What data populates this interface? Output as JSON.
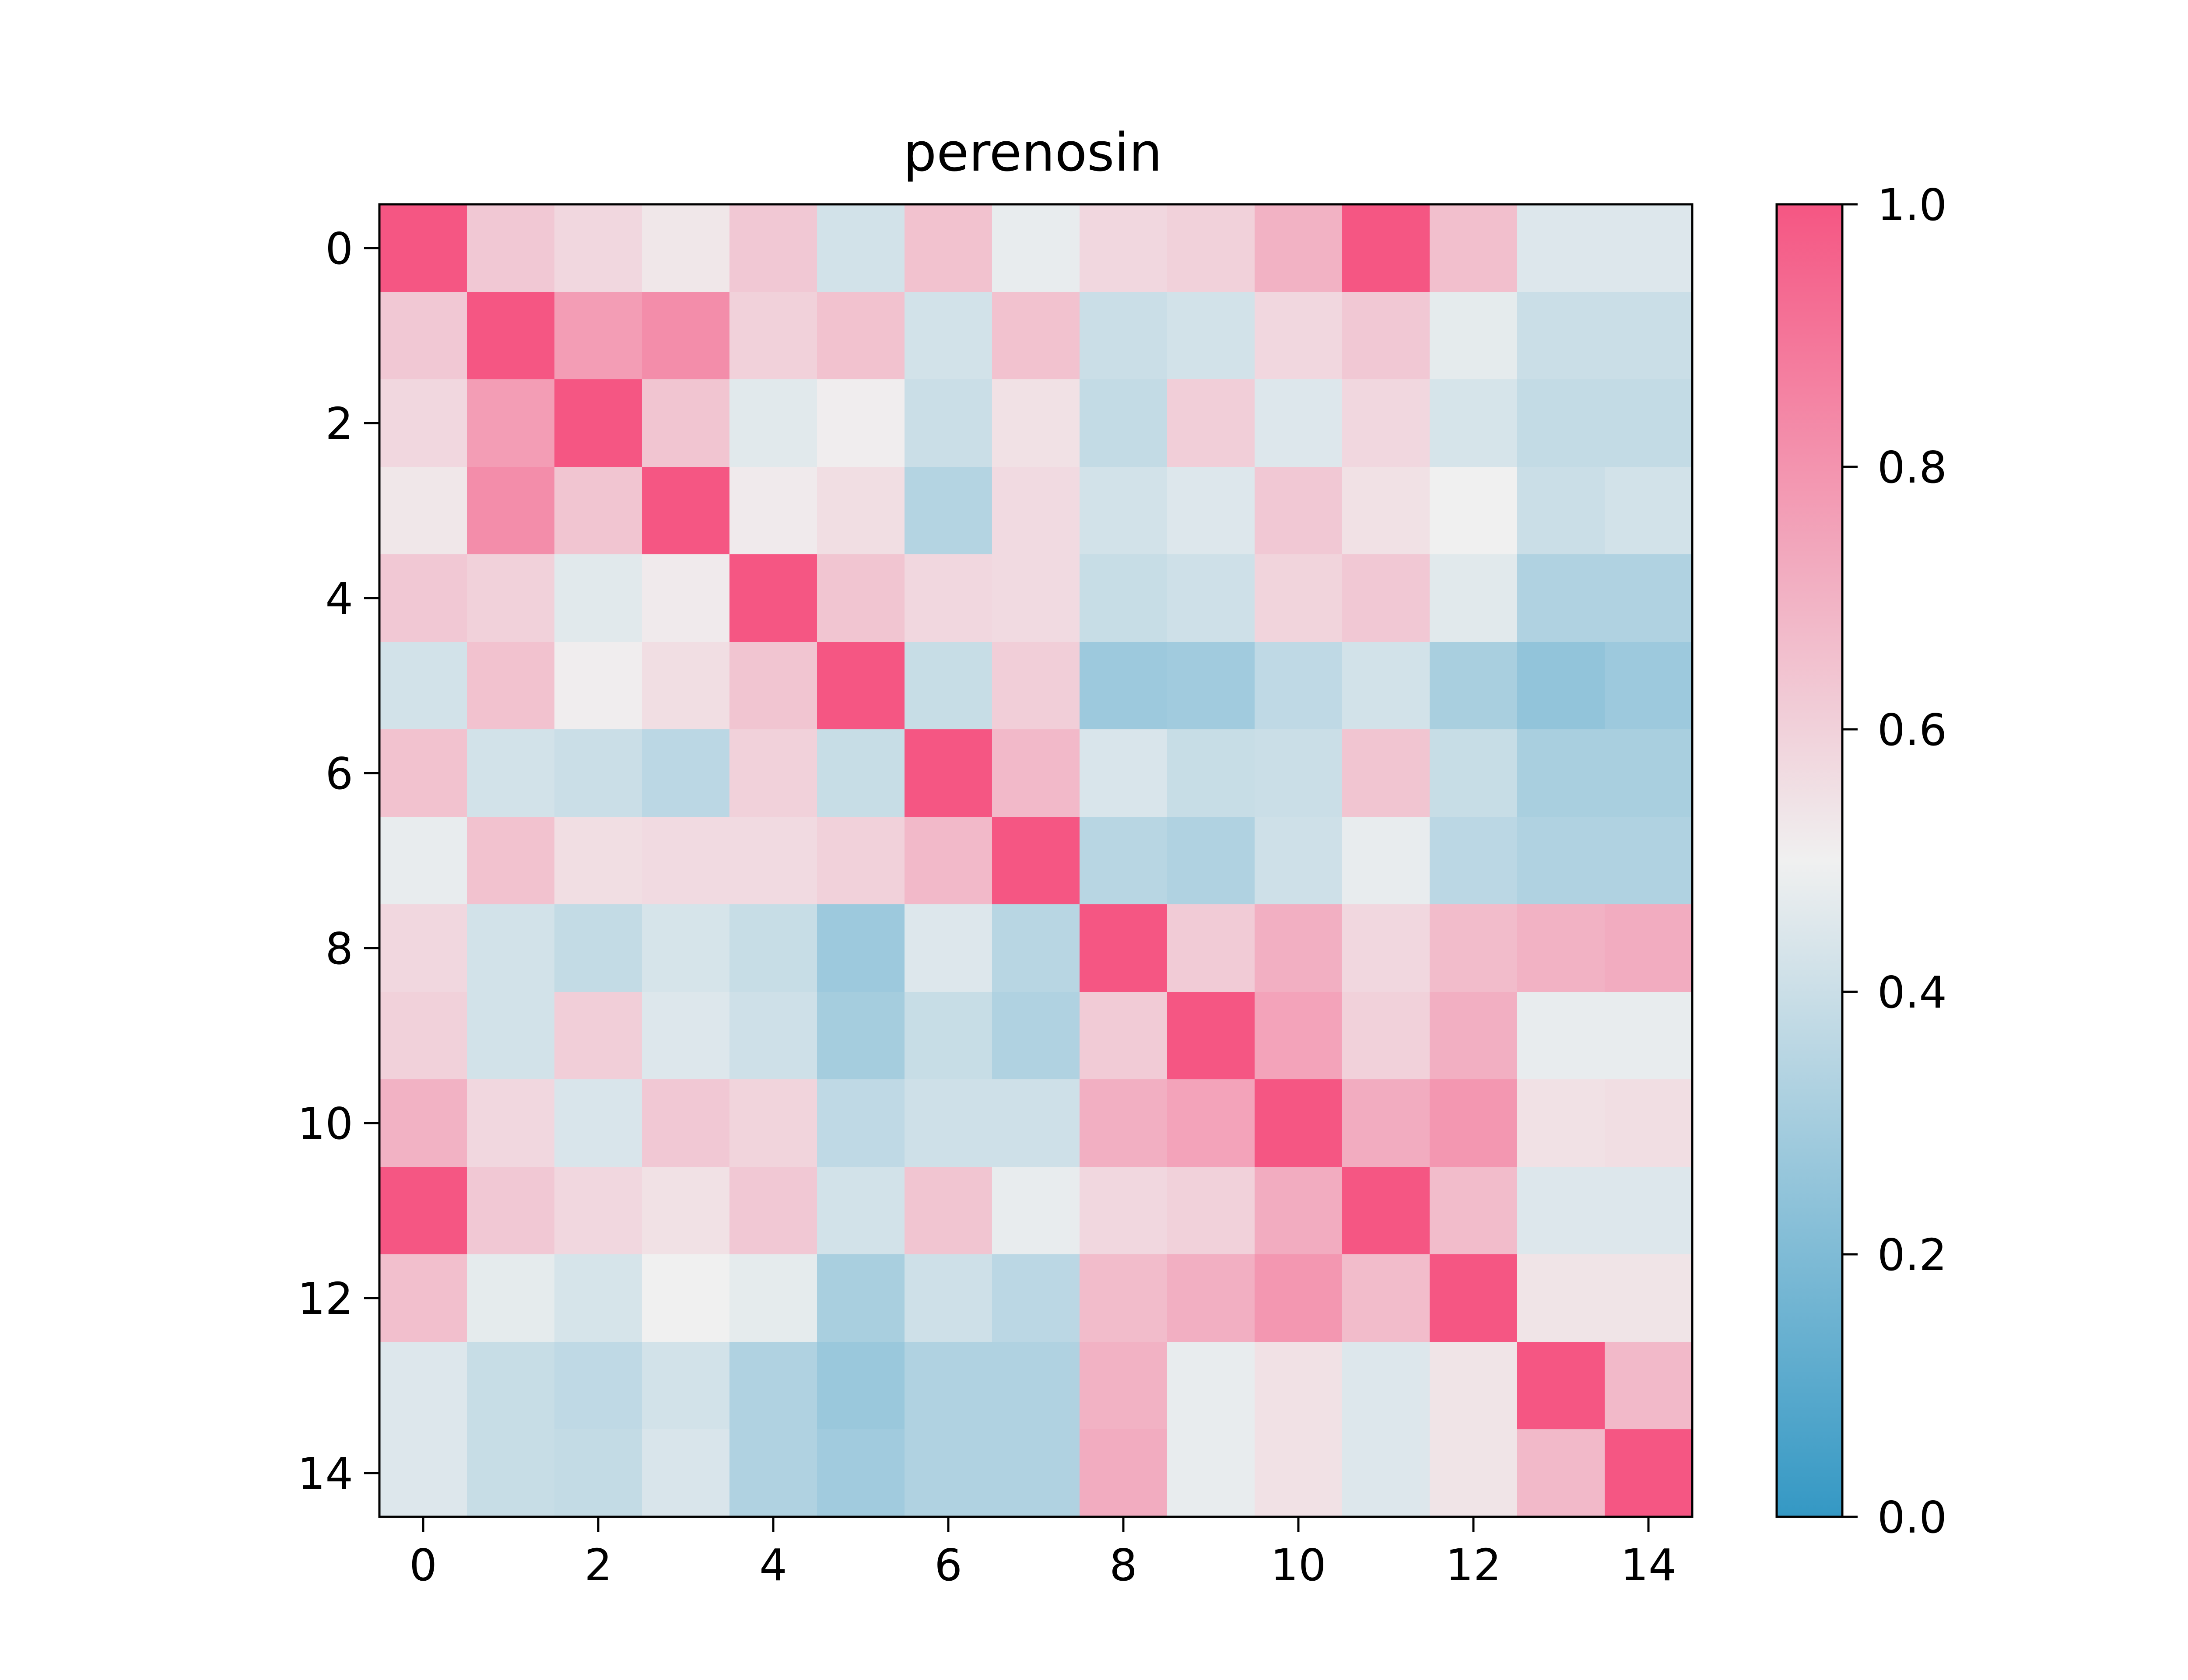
{
  "chart_data": {
    "type": "heatmap",
    "title": "perenosin",
    "xlabel": "",
    "ylabel": "",
    "rows": 15,
    "cols": 15,
    "x_ticks": [
      "0",
      "2",
      "4",
      "6",
      "8",
      "10",
      "12",
      "14"
    ],
    "y_ticks": [
      "0",
      "2",
      "4",
      "6",
      "8",
      "10",
      "12",
      "14"
    ],
    "colorbar": {
      "min": 0.0,
      "max": 1.0,
      "ticks": [
        "0.0",
        "0.2",
        "0.4",
        "0.6",
        "0.8",
        "1.0"
      ],
      "colormap": [
        "#3498c4",
        "#f0f0f0",
        "#f55683"
      ]
    },
    "values": [
      [
        1.0,
        0.63,
        0.58,
        0.53,
        0.63,
        0.42,
        0.65,
        0.48,
        0.58,
        0.6,
        0.7,
        1.0,
        0.66,
        0.45,
        0.45
      ],
      [
        0.63,
        1.0,
        0.77,
        0.82,
        0.6,
        0.65,
        0.42,
        0.65,
        0.4,
        0.42,
        0.58,
        0.63,
        0.47,
        0.4,
        0.4
      ],
      [
        0.58,
        0.77,
        1.0,
        0.64,
        0.46,
        0.51,
        0.4,
        0.55,
        0.38,
        0.61,
        0.45,
        0.58,
        0.43,
        0.38,
        0.38
      ],
      [
        0.53,
        0.82,
        0.64,
        1.0,
        0.52,
        0.56,
        0.34,
        0.57,
        0.42,
        0.45,
        0.63,
        0.55,
        0.5,
        0.4,
        0.42
      ],
      [
        0.63,
        0.6,
        0.46,
        0.52,
        1.0,
        0.64,
        0.58,
        0.57,
        0.39,
        0.41,
        0.59,
        0.63,
        0.46,
        0.33,
        0.33
      ],
      [
        0.42,
        0.65,
        0.51,
        0.56,
        0.64,
        1.0,
        0.39,
        0.61,
        0.28,
        0.29,
        0.37,
        0.42,
        0.31,
        0.25,
        0.28
      ],
      [
        0.65,
        0.42,
        0.4,
        0.36,
        0.6,
        0.39,
        1.0,
        0.68,
        0.44,
        0.39,
        0.4,
        0.64,
        0.39,
        0.31,
        0.31
      ],
      [
        0.48,
        0.65,
        0.56,
        0.57,
        0.57,
        0.6,
        0.68,
        1.0,
        0.35,
        0.33,
        0.41,
        0.48,
        0.36,
        0.33,
        0.33
      ],
      [
        0.58,
        0.42,
        0.38,
        0.43,
        0.39,
        0.28,
        0.45,
        0.35,
        1.0,
        0.62,
        0.71,
        0.58,
        0.67,
        0.7,
        0.72
      ],
      [
        0.6,
        0.42,
        0.61,
        0.45,
        0.41,
        0.3,
        0.39,
        0.33,
        0.62,
        1.0,
        0.75,
        0.6,
        0.71,
        0.48,
        0.48
      ],
      [
        0.7,
        0.58,
        0.44,
        0.63,
        0.59,
        0.37,
        0.41,
        0.41,
        0.71,
        0.75,
        1.0,
        0.72,
        0.79,
        0.55,
        0.56
      ],
      [
        1.0,
        0.63,
        0.58,
        0.55,
        0.63,
        0.42,
        0.64,
        0.48,
        0.58,
        0.6,
        0.72,
        1.0,
        0.67,
        0.45,
        0.45
      ],
      [
        0.66,
        0.47,
        0.43,
        0.5,
        0.47,
        0.31,
        0.41,
        0.36,
        0.67,
        0.71,
        0.79,
        0.67,
        1.0,
        0.54,
        0.54
      ],
      [
        0.45,
        0.39,
        0.37,
        0.42,
        0.33,
        0.27,
        0.33,
        0.33,
        0.7,
        0.48,
        0.55,
        0.45,
        0.54,
        1.0,
        0.68
      ],
      [
        0.45,
        0.39,
        0.38,
        0.44,
        0.33,
        0.29,
        0.33,
        0.33,
        0.72,
        0.48,
        0.55,
        0.45,
        0.54,
        0.68,
        1.0
      ]
    ]
  }
}
